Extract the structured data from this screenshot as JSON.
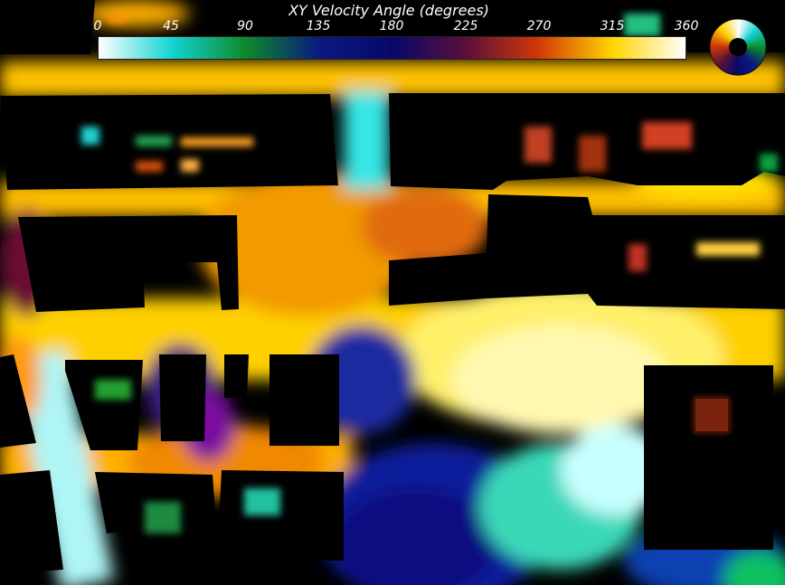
{
  "colorbar": {
    "title": "XY Velocity Angle (degrees)",
    "ticks": [
      "0",
      "45",
      "90",
      "135",
      "180",
      "225",
      "270",
      "315",
      "360"
    ],
    "stops": [
      "#ffffff",
      "#13d4d4",
      "#0d8a2a",
      "#0b1a80",
      "#08086a",
      "#5a0f3a",
      "#d23806",
      "#ffd400",
      "#ffffff"
    ]
  },
  "colors": {
    "background": "#000000",
    "dominant_flow": "#ffc400"
  },
  "icons": {
    "color_wheel": "hue-wheel-icon"
  }
}
